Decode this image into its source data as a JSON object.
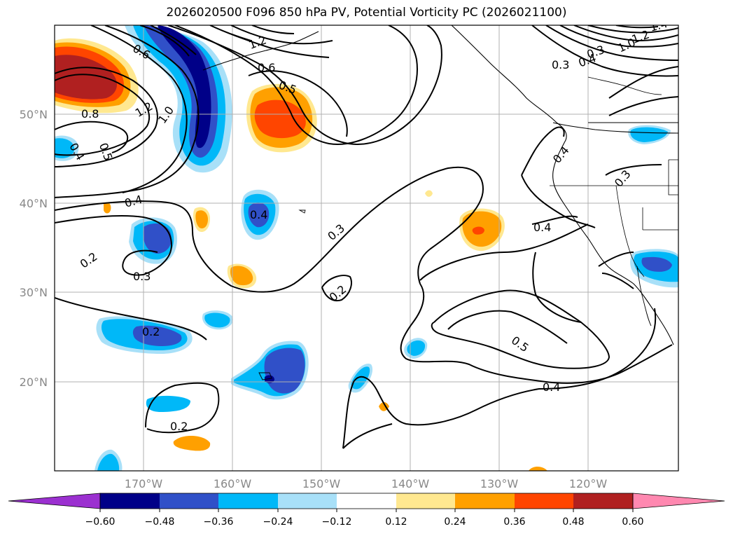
{
  "title": "2026020500 F096 850 hPa PV, Potential Vorticity PC (2026021100)",
  "latitude_labels": [
    "50°N",
    "40°N",
    "30°N",
    "20°N"
  ],
  "longitude_labels": [
    "170°W",
    "160°W",
    "150°W",
    "140°W",
    "130°W",
    "120°W"
  ],
  "contour_labels": [
    "0.6",
    "0.6",
    "0.5",
    "0.8",
    "1.2",
    "1.0",
    "0.4",
    "0.5",
    "0.4",
    "0.3",
    "0.2",
    "0.3",
    "0.4",
    "0.3",
    "0.2",
    "0.2",
    "0.2",
    "0.4",
    "0.3",
    "0.4",
    "0.5",
    "0.4",
    "1.2",
    "1.0",
    "0.3",
    "0.4",
    "1.4",
    "1.2"
  ],
  "colorbar": {
    "ticks": [
      "−0.60",
      "−0.48",
      "−0.36",
      "−0.24",
      "−0.12",
      "0.12",
      "0.24",
      "0.36",
      "0.48",
      "0.60"
    ],
    "colors": {
      "extend_low": "#9b30d0",
      "neg_060": "#000088",
      "neg_048": "#3050c8",
      "neg_036": "#00b8f8",
      "neg_024": "#a8e0f8",
      "neutral": "#ffffff",
      "pos_012": "#ffe890",
      "pos_024": "#ffa000",
      "pos_036": "#ff4500",
      "pos_048": "#b02020",
      "extend_high": "#ff88b0"
    }
  }
}
